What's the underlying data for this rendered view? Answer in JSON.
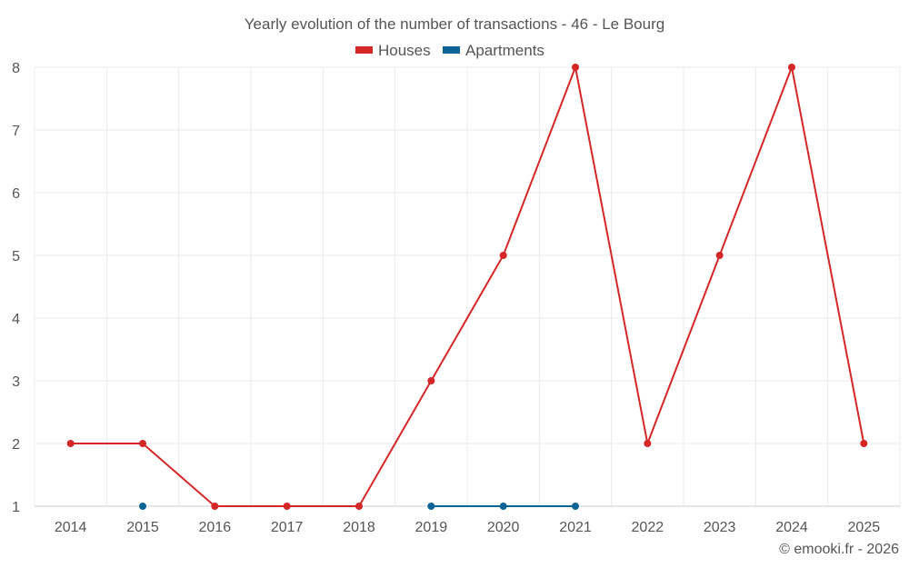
{
  "chart_data": {
    "type": "line",
    "title": "Yearly evolution of the number of transactions - 46 - Le Bourg",
    "categories": [
      "2014",
      "2015",
      "2016",
      "2017",
      "2018",
      "2019",
      "2020",
      "2021",
      "2022",
      "2023",
      "2024",
      "2025"
    ],
    "ylim": [
      1,
      8
    ],
    "yticks": [
      1,
      2,
      3,
      4,
      5,
      6,
      7,
      8
    ],
    "grid": true,
    "legend_position": "top-center",
    "series": [
      {
        "name": "Houses",
        "color": "#d62728",
        "values": [
          2,
          2,
          1,
          1,
          1,
          3,
          5,
          8,
          2,
          5,
          8,
          2
        ]
      },
      {
        "name": "Apartments",
        "color": "#0a6496",
        "values": [
          null,
          1,
          null,
          null,
          null,
          1,
          1,
          1,
          null,
          null,
          null,
          null
        ]
      }
    ],
    "credit": "© emooki.fr - 2026"
  }
}
